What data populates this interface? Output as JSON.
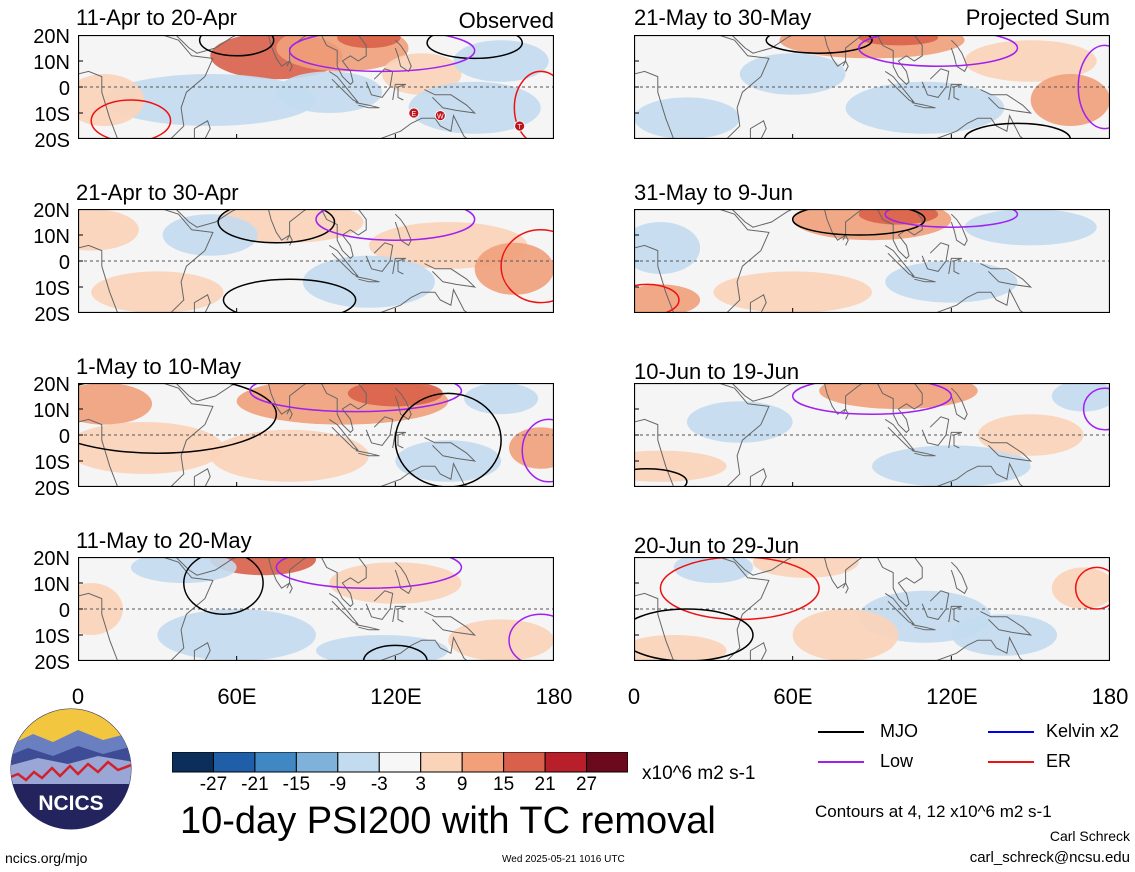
{
  "chart_data": {
    "type": "heatmap",
    "title": "10-day PSI200 with TC removal",
    "section_labels": {
      "observed": "Observed",
      "projected": "Projected Sum"
    },
    "x_ticks": [
      "0",
      "60E",
      "120E",
      "180"
    ],
    "y_ticks": [
      "20N",
      "10N",
      "0",
      "10S",
      "20S"
    ],
    "xlim": [
      0,
      180
    ],
    "ylim": [
      -20,
      20
    ],
    "colorbar": {
      "ticks": [
        "-27",
        "-21",
        "-15",
        "-9",
        "-3",
        "3",
        "9",
        "15",
        "21",
        "27"
      ],
      "units": "x10^6 m2 s-1",
      "colors": [
        "#0b2f5a",
        "#1f5fa8",
        "#3f88c4",
        "#7fb2da",
        "#c3dbef",
        "#f7f7f7",
        "#fbd3b8",
        "#f1a07a",
        "#d9604a",
        "#b81f2b",
        "#6b0a1c"
      ]
    },
    "legend": [
      {
        "label": "MJO",
        "color": "#000000"
      },
      {
        "label": "Kelvin x2",
        "color": "#0000ee"
      },
      {
        "label": "Low",
        "color": "#a020f0"
      },
      {
        "label": "ER",
        "color": "#ee1111"
      }
    ],
    "contours_note": "Contours at 4, 12 x10^6 m2 s-1",
    "panels": [
      {
        "period": "11-Apr to 20-Apr",
        "section": "Observed",
        "tc_markers": [
          "E",
          "W",
          "T"
        ]
      },
      {
        "period": "21-Apr to 30-Apr",
        "section": "Observed"
      },
      {
        "period": "1-May to 10-May",
        "section": "Observed"
      },
      {
        "period": "11-May to 20-May",
        "section": "Observed"
      },
      {
        "period": "21-May to 30-May",
        "section": "Projected Sum"
      },
      {
        "period": "31-May to 9-Jun",
        "section": "Projected Sum"
      },
      {
        "period": "10-Jun to 19-Jun",
        "section": "Projected Sum"
      },
      {
        "period": "20-Jun to 29-Jun",
        "section": "Projected Sum"
      }
    ]
  },
  "logo_text": "NCICS",
  "footer": {
    "site": "ncics.org/mjo",
    "timestamp": "Wed 2025-05-21 1016 UTC",
    "author": "Carl Schreck",
    "email": "carl_schreck@ncsu.edu"
  }
}
